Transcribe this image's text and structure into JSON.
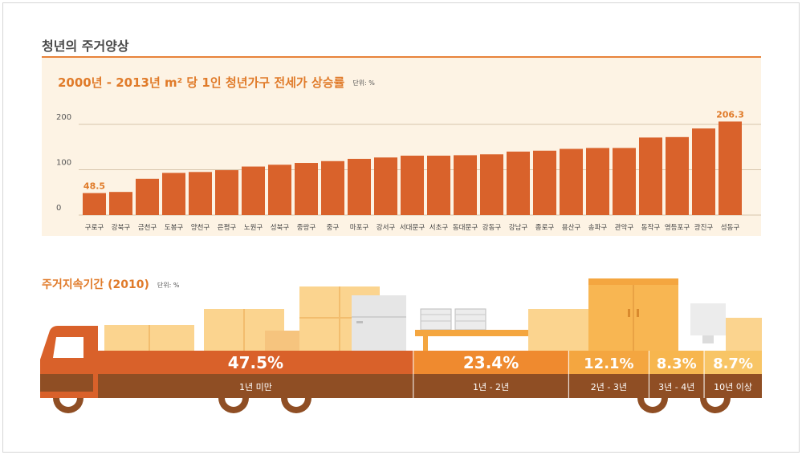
{
  "page": {
    "title": "청년의 주거양상",
    "chart1_title": "2000년 - 2013년 m² 당 1인 청년가구 전세가 상승률",
    "chart1_unit": "단위: %",
    "chart2_title": "주거지속기간 (2010)",
    "chart2_unit": "단위: %"
  },
  "chart_data": [
    {
      "type": "bar",
      "title": "2000년 - 2013년 m² 당 1인 청년가구 전세가 상승률",
      "ylabel": "단위: %",
      "yticks": [
        0,
        100,
        200
      ],
      "ylim": [
        0,
        220
      ],
      "categories": [
        "구로구",
        "강북구",
        "금천구",
        "도봉구",
        "양천구",
        "은평구",
        "노원구",
        "성북구",
        "중랑구",
        "중구",
        "마포구",
        "강서구",
        "서대문구",
        "서초구",
        "동대문구",
        "강동구",
        "강남구",
        "종로구",
        "용산구",
        "송파구",
        "관악구",
        "동작구",
        "영등포구",
        "광진구",
        "성동구"
      ],
      "values": [
        48.5,
        51,
        80,
        93,
        95,
        99,
        107,
        111,
        115,
        119,
        124,
        127,
        131,
        131,
        132,
        134,
        140,
        142,
        146,
        148,
        148,
        171,
        172,
        191,
        206.3
      ],
      "value_labels": {
        "first": "48.5",
        "last": "206.3"
      }
    },
    {
      "type": "bar",
      "title": "주거지속기간 (2010)",
      "ylabel": "단위: %",
      "categories": [
        "1년 미만",
        "1년 - 2년",
        "2년 - 3년",
        "3년 - 4년",
        "10년 이상"
      ],
      "values": [
        47.5,
        23.4,
        12.1,
        8.3,
        8.7
      ],
      "value_labels": [
        "47.5%",
        "23.4%",
        "12.1%",
        "8.3%",
        "8.7%"
      ],
      "colors": [
        "#d9612a",
        "#ef8a2f",
        "#f4a640",
        "#f7b64e",
        "#f8c566"
      ]
    }
  ],
  "colors": {
    "accent": "#e07b2a",
    "bar": "#d9622b",
    "panel": "#fdf3e4",
    "truck_base": "#8f4e24",
    "box": "#fbd48f"
  }
}
